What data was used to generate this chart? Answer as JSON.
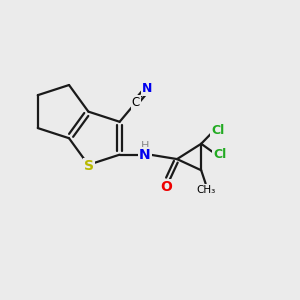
{
  "background_color": "#ebebeb",
  "bond_color": "#1a1a1a",
  "S_color": "#b8b800",
  "N_color": "#0000ee",
  "O_color": "#ee0000",
  "Cl_color": "#22aa22",
  "H_color": "#888888",
  "line_width": 1.6,
  "figsize": [
    3.0,
    3.0
  ],
  "dpi": 100,
  "xlim": [
    0,
    10
  ],
  "ylim": [
    0,
    10
  ]
}
